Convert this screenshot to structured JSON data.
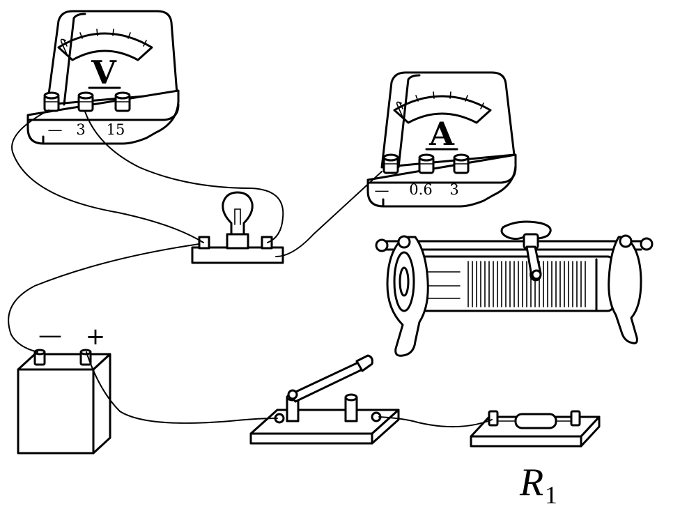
{
  "voltmeter": {
    "symbol": "V",
    "terminals": {
      "negative": "—",
      "low_range": "3",
      "high_range": "15"
    }
  },
  "ammeter": {
    "symbol": "A",
    "terminals": {
      "negative": "—",
      "low_range": "0.6",
      "high_range": "3"
    }
  },
  "battery": {
    "negative_sign": "—",
    "positive_sign": "+"
  },
  "resistor": {
    "label_main": "R",
    "label_sub": "1"
  }
}
